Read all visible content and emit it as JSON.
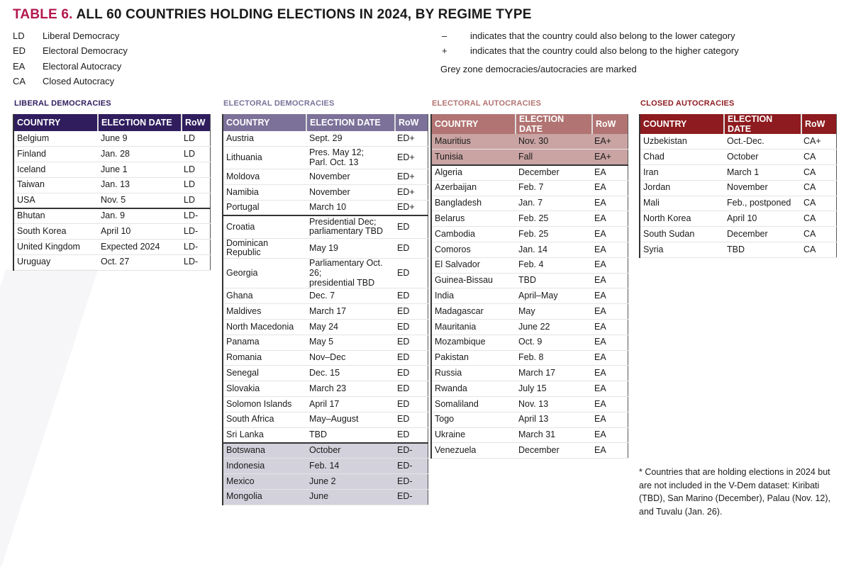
{
  "title": {
    "number": "TABLE 6.",
    "text": "ALL 60 COUNTRIES HOLDING ELECTIONS IN 2024, BY REGIME TYPE"
  },
  "legend": [
    {
      "abbr": "LD",
      "label": "Liberal Democracy"
    },
    {
      "abbr": "ED",
      "label": "Electoral Democracy"
    },
    {
      "abbr": "EA",
      "label": "Electoral Autocracy"
    },
    {
      "abbr": "CA",
      "label": "Closed Autocracy"
    }
  ],
  "notes": {
    "minus": {
      "symbol": "–",
      "text": "indicates that the country could also belong to the lower category"
    },
    "plus": {
      "symbol": "+",
      "text": "indicates that the country could also belong to the higher category"
    },
    "grey": "Grey zone democracies/autocracies are marked"
  },
  "columns": {
    "country": "COUNTRY",
    "date": "ELECTION DATE",
    "row": "RoW"
  },
  "colors": {
    "title_accent": "#b3174e",
    "ld": "#2f1d5e",
    "ed": "#7b7199",
    "ea": "#b17472",
    "ca": "#8e1b1f",
    "ed_grey": "#d3d1dc",
    "ea_grey": "#c9a4a3"
  },
  "tables": [
    {
      "key": "ld",
      "title": "LIBERAL DEMOCRACIES",
      "rows": [
        [
          "Belgium",
          "June 9",
          "LD"
        ],
        [
          "Finland",
          "Jan. 28",
          "LD"
        ],
        [
          "Iceland",
          "June 1",
          "LD"
        ],
        [
          "Taiwan",
          "Jan. 13",
          "LD"
        ],
        [
          "USA",
          "Nov. 5",
          "LD"
        ],
        [
          "Bhutan",
          "Jan. 9",
          "LD-"
        ],
        [
          "South Korea",
          "April 10",
          "LD-"
        ],
        [
          "United Kingdom",
          "Expected 2024",
          "LD-"
        ],
        [
          "Uruguay",
          "Oct. 27",
          "LD-"
        ]
      ]
    },
    {
      "key": "ed",
      "title": "ELECTORAL DEMOCRACIES",
      "rows": [
        [
          "Austria",
          "Sept. 29",
          "ED+"
        ],
        [
          "Lithuania",
          "Pres. May 12;\nParl. Oct. 13",
          "ED+"
        ],
        [
          "Moldova",
          "November",
          "ED+"
        ],
        [
          "Namibia",
          "November",
          "ED+"
        ],
        [
          "Portugal",
          "March 10",
          "ED+"
        ],
        [
          "Croatia",
          "Presidential Dec;\nparliamentary TBD",
          "ED"
        ],
        [
          "Dominican Republic",
          "May 19",
          "ED"
        ],
        [
          "Georgia",
          "Parliamentary Oct. 26;\npresidential TBD",
          "ED"
        ],
        [
          "Ghana",
          "Dec. 7",
          "ED"
        ],
        [
          "Maldives",
          "March 17",
          "ED"
        ],
        [
          "North Macedonia",
          "May 24",
          "ED"
        ],
        [
          "Panama",
          "May 5",
          "ED"
        ],
        [
          "Romania",
          "Nov–Dec",
          "ED"
        ],
        [
          "Senegal",
          "Dec. 15",
          "ED"
        ],
        [
          "Slovakia",
          "March 23",
          "ED"
        ],
        [
          "Solomon Islands",
          "April 17",
          "ED"
        ],
        [
          "South Africa",
          "May–August",
          "ED"
        ],
        [
          "Sri Lanka",
          "TBD",
          "ED"
        ],
        [
          "Botswana",
          "October",
          "ED-"
        ],
        [
          "Indonesia",
          "Feb. 14",
          "ED-"
        ],
        [
          "Mexico",
          "June 2",
          "ED-"
        ],
        [
          "Mongolia",
          "June",
          "ED-"
        ]
      ]
    },
    {
      "key": "ea",
      "title": "ELECTORAL AUTOCRACIES",
      "rows": [
        [
          "Mauritius",
          "Nov. 30",
          "EA+"
        ],
        [
          "Tunisia",
          "Fall",
          "EA+"
        ],
        [
          "Algeria",
          "December",
          "EA"
        ],
        [
          "Azerbaijan",
          "Feb. 7",
          "EA"
        ],
        [
          "Bangladesh",
          "Jan. 7",
          "EA"
        ],
        [
          "Belarus",
          "Feb. 25",
          "EA"
        ],
        [
          "Cambodia",
          "Feb. 25",
          "EA"
        ],
        [
          "Comoros",
          "Jan. 14",
          "EA"
        ],
        [
          "El Salvador",
          "Feb. 4",
          "EA"
        ],
        [
          "Guinea-Bissau",
          "TBD",
          "EA"
        ],
        [
          "India",
          "April–May",
          "EA"
        ],
        [
          "Madagascar",
          "May",
          "EA"
        ],
        [
          "Mauritania",
          "June 22",
          "EA"
        ],
        [
          "Mozambique",
          "Oct. 9",
          "EA"
        ],
        [
          "Pakistan",
          "Feb. 8",
          "EA"
        ],
        [
          "Russia",
          "March 17",
          "EA"
        ],
        [
          "Rwanda",
          "July 15",
          "EA"
        ],
        [
          "Somaliland",
          "Nov. 13",
          "EA"
        ],
        [
          "Togo",
          "April 13",
          "EA"
        ],
        [
          "Ukraine",
          "March 31",
          "EA"
        ],
        [
          "Venezuela",
          "December",
          "EA"
        ]
      ]
    },
    {
      "key": "ca",
      "title": "CLOSED AUTOCRACIES",
      "rows": [
        [
          "Uzbekistan",
          "Oct.-Dec.",
          "CA+"
        ],
        [
          "Chad",
          "October",
          "CA"
        ],
        [
          "Iran",
          "March 1",
          "CA"
        ],
        [
          "Jordan",
          "November",
          "CA"
        ],
        [
          "Mali",
          "Feb., postponed",
          "CA"
        ],
        [
          "North Korea",
          "April 10",
          "CA"
        ],
        [
          "South Sudan",
          "December",
          "CA"
        ],
        [
          "Syria",
          "TBD",
          "CA"
        ]
      ]
    }
  ],
  "footnote": "* Countries that are holding elections in 2024 but are not included in the V-Dem dataset: Kiribati (TBD), San Marino (December), Palau (Nov. 12), and Tuvalu (Jan. 26)."
}
